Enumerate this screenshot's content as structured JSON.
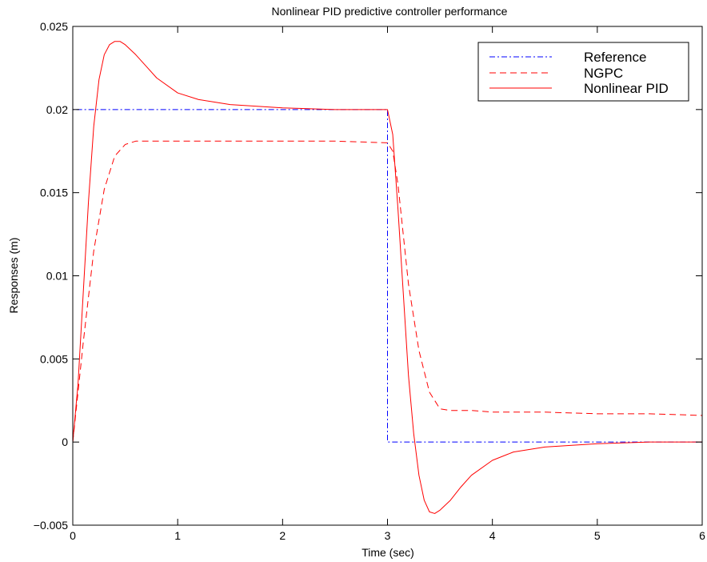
{
  "chart_data": {
    "type": "line",
    "title": "Nonlinear PID predictive controller performance",
    "xlabel": "Time (sec)",
    "ylabel": "Responses (m)",
    "xlim": [
      0,
      6
    ],
    "ylim": [
      -0.005,
      0.025
    ],
    "grid": false,
    "legend_position": "top-right",
    "xticks": [
      0,
      1,
      2,
      3,
      4,
      5,
      6
    ],
    "xtick_labels": [
      "0",
      "1",
      "2",
      "3",
      "4",
      "5",
      "6"
    ],
    "yticks": [
      -0.005,
      0,
      0.005,
      0.01,
      0.015,
      0.02,
      0.025
    ],
    "ytick_labels": [
      "−0.005",
      "0",
      "0.005",
      "0.01",
      "0.015",
      "0.02",
      "0.025"
    ],
    "series": [
      {
        "name": "Reference",
        "color": "#0000ff",
        "dash": "dashdot",
        "x": [
          0,
          0,
          3,
          3,
          6
        ],
        "y": [
          0,
          0.02,
          0.02,
          0,
          0
        ]
      },
      {
        "name": "NGPC",
        "color": "#ff0000",
        "dash": "dashed",
        "x": [
          0,
          0.1,
          0.2,
          0.3,
          0.4,
          0.5,
          0.6,
          0.8,
          1.0,
          1.5,
          2.0,
          2.5,
          3.0,
          3.05,
          3.1,
          3.15,
          3.2,
          3.3,
          3.4,
          3.5,
          3.6,
          3.8,
          4.0,
          4.5,
          5.0,
          5.5,
          6.0
        ],
        "y": [
          0,
          0.006,
          0.0115,
          0.0152,
          0.0172,
          0.0179,
          0.0181,
          0.0181,
          0.0181,
          0.0181,
          0.0181,
          0.0181,
          0.018,
          0.0175,
          0.0155,
          0.0125,
          0.0095,
          0.0055,
          0.003,
          0.002,
          0.0019,
          0.0019,
          0.0018,
          0.0018,
          0.0017,
          0.0017,
          0.0016
        ]
      },
      {
        "name": "Nonlinear PID",
        "color": "#ff0000",
        "dash": "solid",
        "x": [
          0,
          0.05,
          0.1,
          0.15,
          0.2,
          0.25,
          0.3,
          0.35,
          0.4,
          0.45,
          0.5,
          0.6,
          0.7,
          0.8,
          1.0,
          1.2,
          1.5,
          2.0,
          2.5,
          3.0,
          3.05,
          3.1,
          3.15,
          3.2,
          3.25,
          3.3,
          3.35,
          3.4,
          3.45,
          3.5,
          3.6,
          3.7,
          3.8,
          4.0,
          4.2,
          4.5,
          5.0,
          5.5,
          6.0
        ],
        "y": [
          0,
          0.0035,
          0.009,
          0.0145,
          0.019,
          0.0218,
          0.0233,
          0.0239,
          0.0241,
          0.0241,
          0.0239,
          0.0233,
          0.0226,
          0.0219,
          0.021,
          0.0206,
          0.0203,
          0.0201,
          0.02,
          0.02,
          0.0185,
          0.014,
          0.009,
          0.004,
          0.0005,
          -0.002,
          -0.0035,
          -0.0042,
          -0.0043,
          -0.0041,
          -0.0035,
          -0.0027,
          -0.002,
          -0.0011,
          -0.0006,
          -0.0003,
          -0.0001,
          0,
          0
        ]
      }
    ]
  }
}
